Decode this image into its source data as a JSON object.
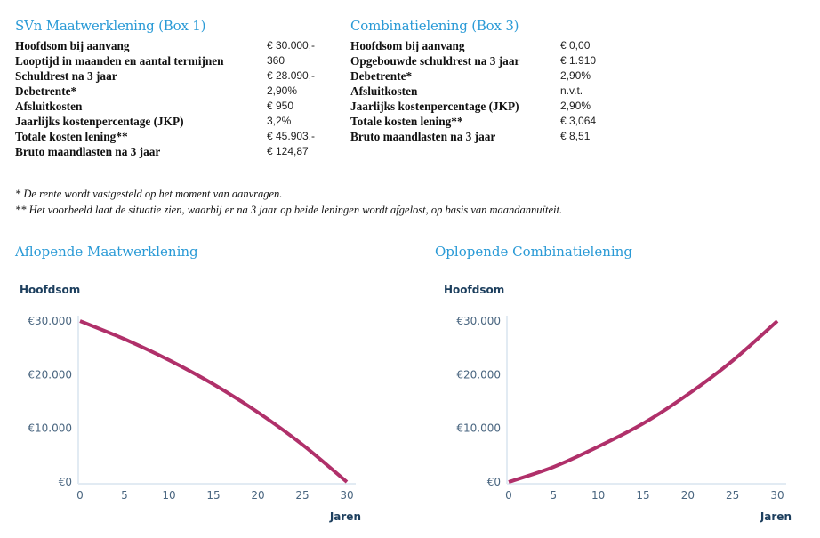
{
  "box1": {
    "title": "SVn Maatwerklening (Box 1)",
    "rows": [
      {
        "label": "Hoofdsom bij aanvang",
        "value": "€ 30.000,-"
      },
      {
        "label": "Looptijd in maanden en aantal termijnen",
        "value": "360"
      },
      {
        "label": "Schuldrest na 3 jaar",
        "value": "€ 28.090,-"
      },
      {
        "label": "Debetrente*",
        "value": "2,90%"
      },
      {
        "label": "Afsluitkosten",
        "value": "€ 950"
      },
      {
        "label": "Jaarlijks kostenpercentage (JKP)",
        "value": "3,2%"
      },
      {
        "label": "Totale kosten lening**",
        "value": "€ 45.903,-"
      },
      {
        "label": "Bruto maandlasten na 3 jaar",
        "value": "€ 124,87"
      }
    ]
  },
  "box3": {
    "title": "Combinatielening (Box 3)",
    "rows": [
      {
        "label": "Hoofdsom bij aanvang",
        "value": "€ 0,00"
      },
      {
        "label": "Opgebouwde schuldrest na 3 jaar",
        "value": "€ 1.910"
      },
      {
        "label": "Debetrente*",
        "value": "2,90%"
      },
      {
        "label": "Afsluitkosten",
        "value": "n.v.t."
      },
      {
        "label": "Jaarlijks kostenpercentage (JKP)",
        "value": "2,90%"
      },
      {
        "label": "Totale kosten lening**",
        "value": "€ 3,064"
      },
      {
        "label": "Bruto maandlasten na 3 jaar",
        "value": "€ 8,51"
      }
    ]
  },
  "notes": [
    "*   De rente wordt vastgesteld op het moment van aanvragen.",
    "** Het voorbeeld laat de situatie zien, waarbij er na 3 jaar op beide leningen wordt afgelost, op basis van maandannuïteit."
  ],
  "chart_data": [
    {
      "type": "line",
      "title": "Aflopende Maatwerklening",
      "ylabel": "Hoofdsom",
      "xlabel": "Jaren",
      "x": [
        0,
        5,
        10,
        15,
        20,
        25,
        30
      ],
      "values": [
        30000,
        26620,
        22720,
        18210,
        12990,
        6970,
        0
      ],
      "xticks": [
        "0",
        "5",
        "10",
        "15",
        "20",
        "25",
        "30"
      ],
      "yticks": [
        {
          "v": 30000,
          "label": "€30.000"
        },
        {
          "v": 20000,
          "label": "€20.000"
        },
        {
          "v": 10000,
          "label": "€10.000"
        },
        {
          "v": 0,
          "label": "€0"
        }
      ],
      "xlim": [
        0,
        30
      ],
      "ylim": [
        0,
        30000
      ],
      "grid": false,
      "line_color": "#b0306a"
    },
    {
      "type": "line",
      "title": "Oplopende Combinatielening",
      "ylabel": "Hoofdsom",
      "xlabel": "Jaren",
      "x": [
        0,
        5,
        10,
        15,
        20,
        25,
        30
      ],
      "values": [
        0,
        2800,
        6600,
        10900,
        16300,
        22600,
        30000
      ],
      "xticks": [
        "0",
        "5",
        "10",
        "15",
        "20",
        "25",
        "30"
      ],
      "yticks": [
        {
          "v": 30000,
          "label": "€30.000"
        },
        {
          "v": 20000,
          "label": "€20.000"
        },
        {
          "v": 10000,
          "label": "€10.000"
        },
        {
          "v": 0,
          "label": "€0"
        }
      ],
      "xlim": [
        0,
        30
      ],
      "ylim": [
        0,
        30000
      ],
      "grid": false,
      "line_color": "#b0306a"
    }
  ]
}
